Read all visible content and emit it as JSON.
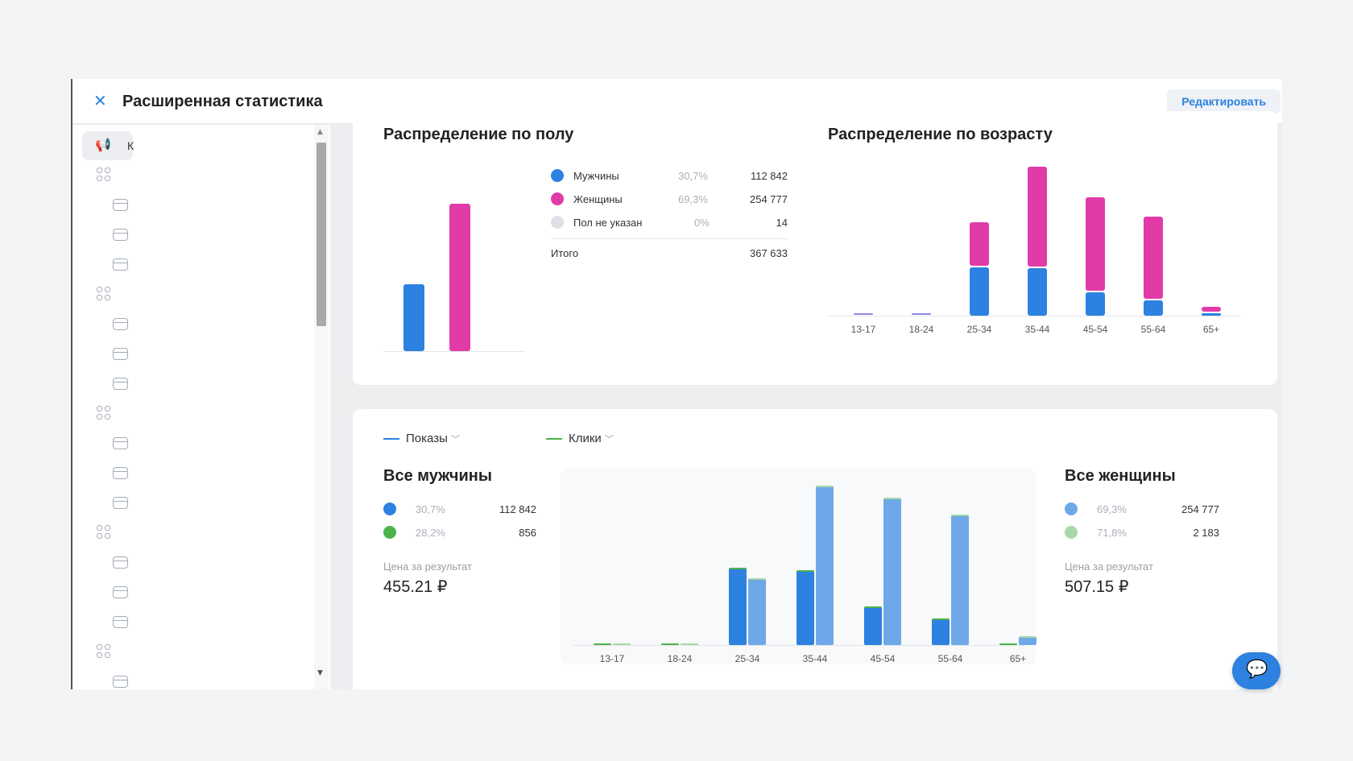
{
  "window": {
    "title": "Расширенная статистика",
    "edit_label": "Редактировать"
  },
  "sidebar": {
    "active_item_label": "К"
  },
  "gender": {
    "title": "Распределение по полу",
    "legend": [
      {
        "label": "Мужчины",
        "pct": "30,7%",
        "value": "112 842",
        "color": "#2d81e0"
      },
      {
        "label": "Женщины",
        "pct": "69,3%",
        "value": "254 777",
        "color": "#e13ba8"
      },
      {
        "label": "Пол не указан",
        "pct": "0%",
        "value": "14",
        "color": "#dde0e4"
      }
    ],
    "total_label": "Итого",
    "total_value": "367 633"
  },
  "age": {
    "title": "Распределение по возрасту"
  },
  "metrics": {
    "impressions_label": "Показы",
    "clicks_label": "Клики"
  },
  "men": {
    "title": "Все мужчины",
    "impressions_pct": "30,7%",
    "impressions_value": "112 842",
    "clicks_pct": "28,2%",
    "clicks_value": "856",
    "price_label": "Цена за результат",
    "price": "455.21 ₽"
  },
  "women": {
    "title": "Все женщины",
    "impressions_pct": "69,3%",
    "impressions_value": "254 777",
    "clicks_pct": "71,8%",
    "clicks_value": "2 183",
    "price_label": "Цена за результат",
    "price": "507.15 ₽"
  },
  "colors": {
    "accent": "#2d81e0",
    "female": "#e13ba8",
    "male_light": "#6ea8e8",
    "clicks": "#4bb34b",
    "clicks_light": "#a8d8a8"
  },
  "chart_data": [
    {
      "type": "bar",
      "title": "Распределение по полу",
      "categories": [
        "Мужчины",
        "Женщины",
        "Пол не указан"
      ],
      "values": [
        112842,
        254777,
        14
      ]
    },
    {
      "type": "bar",
      "stacked": true,
      "title": "Распределение по возрасту",
      "categories": [
        "13-17",
        "18-24",
        "25-34",
        "35-44",
        "45-54",
        "55-64",
        "65+"
      ],
      "series": [
        {
          "values": [
            500,
            500,
            35000,
            34000,
            17000,
            11000,
            1500
          ],
          "color": "#2d81e0"
        },
        {
          "values": [
            0,
            0,
            31000,
            72000,
            67000,
            59000,
            3500
          ],
          "color": "#e13ba8"
        }
      ]
    },
    {
      "type": "bar",
      "categories": [
        "13-17",
        "18-24",
        "25-34",
        "35-44",
        "45-54",
        "55-64",
        "65+"
      ],
      "series": [
        {
          "values": [
            500,
            500,
            56000,
            54000,
            28000,
            19000,
            500
          ],
          "color": "#2d81e0"
        },
        {
          "values": [
            500,
            500,
            48000,
            115000,
            106000,
            94000,
            6500
          ],
          "color": "#6ea8e8"
        }
      ],
      "ylim": [
        0,
        120000
      ]
    }
  ]
}
